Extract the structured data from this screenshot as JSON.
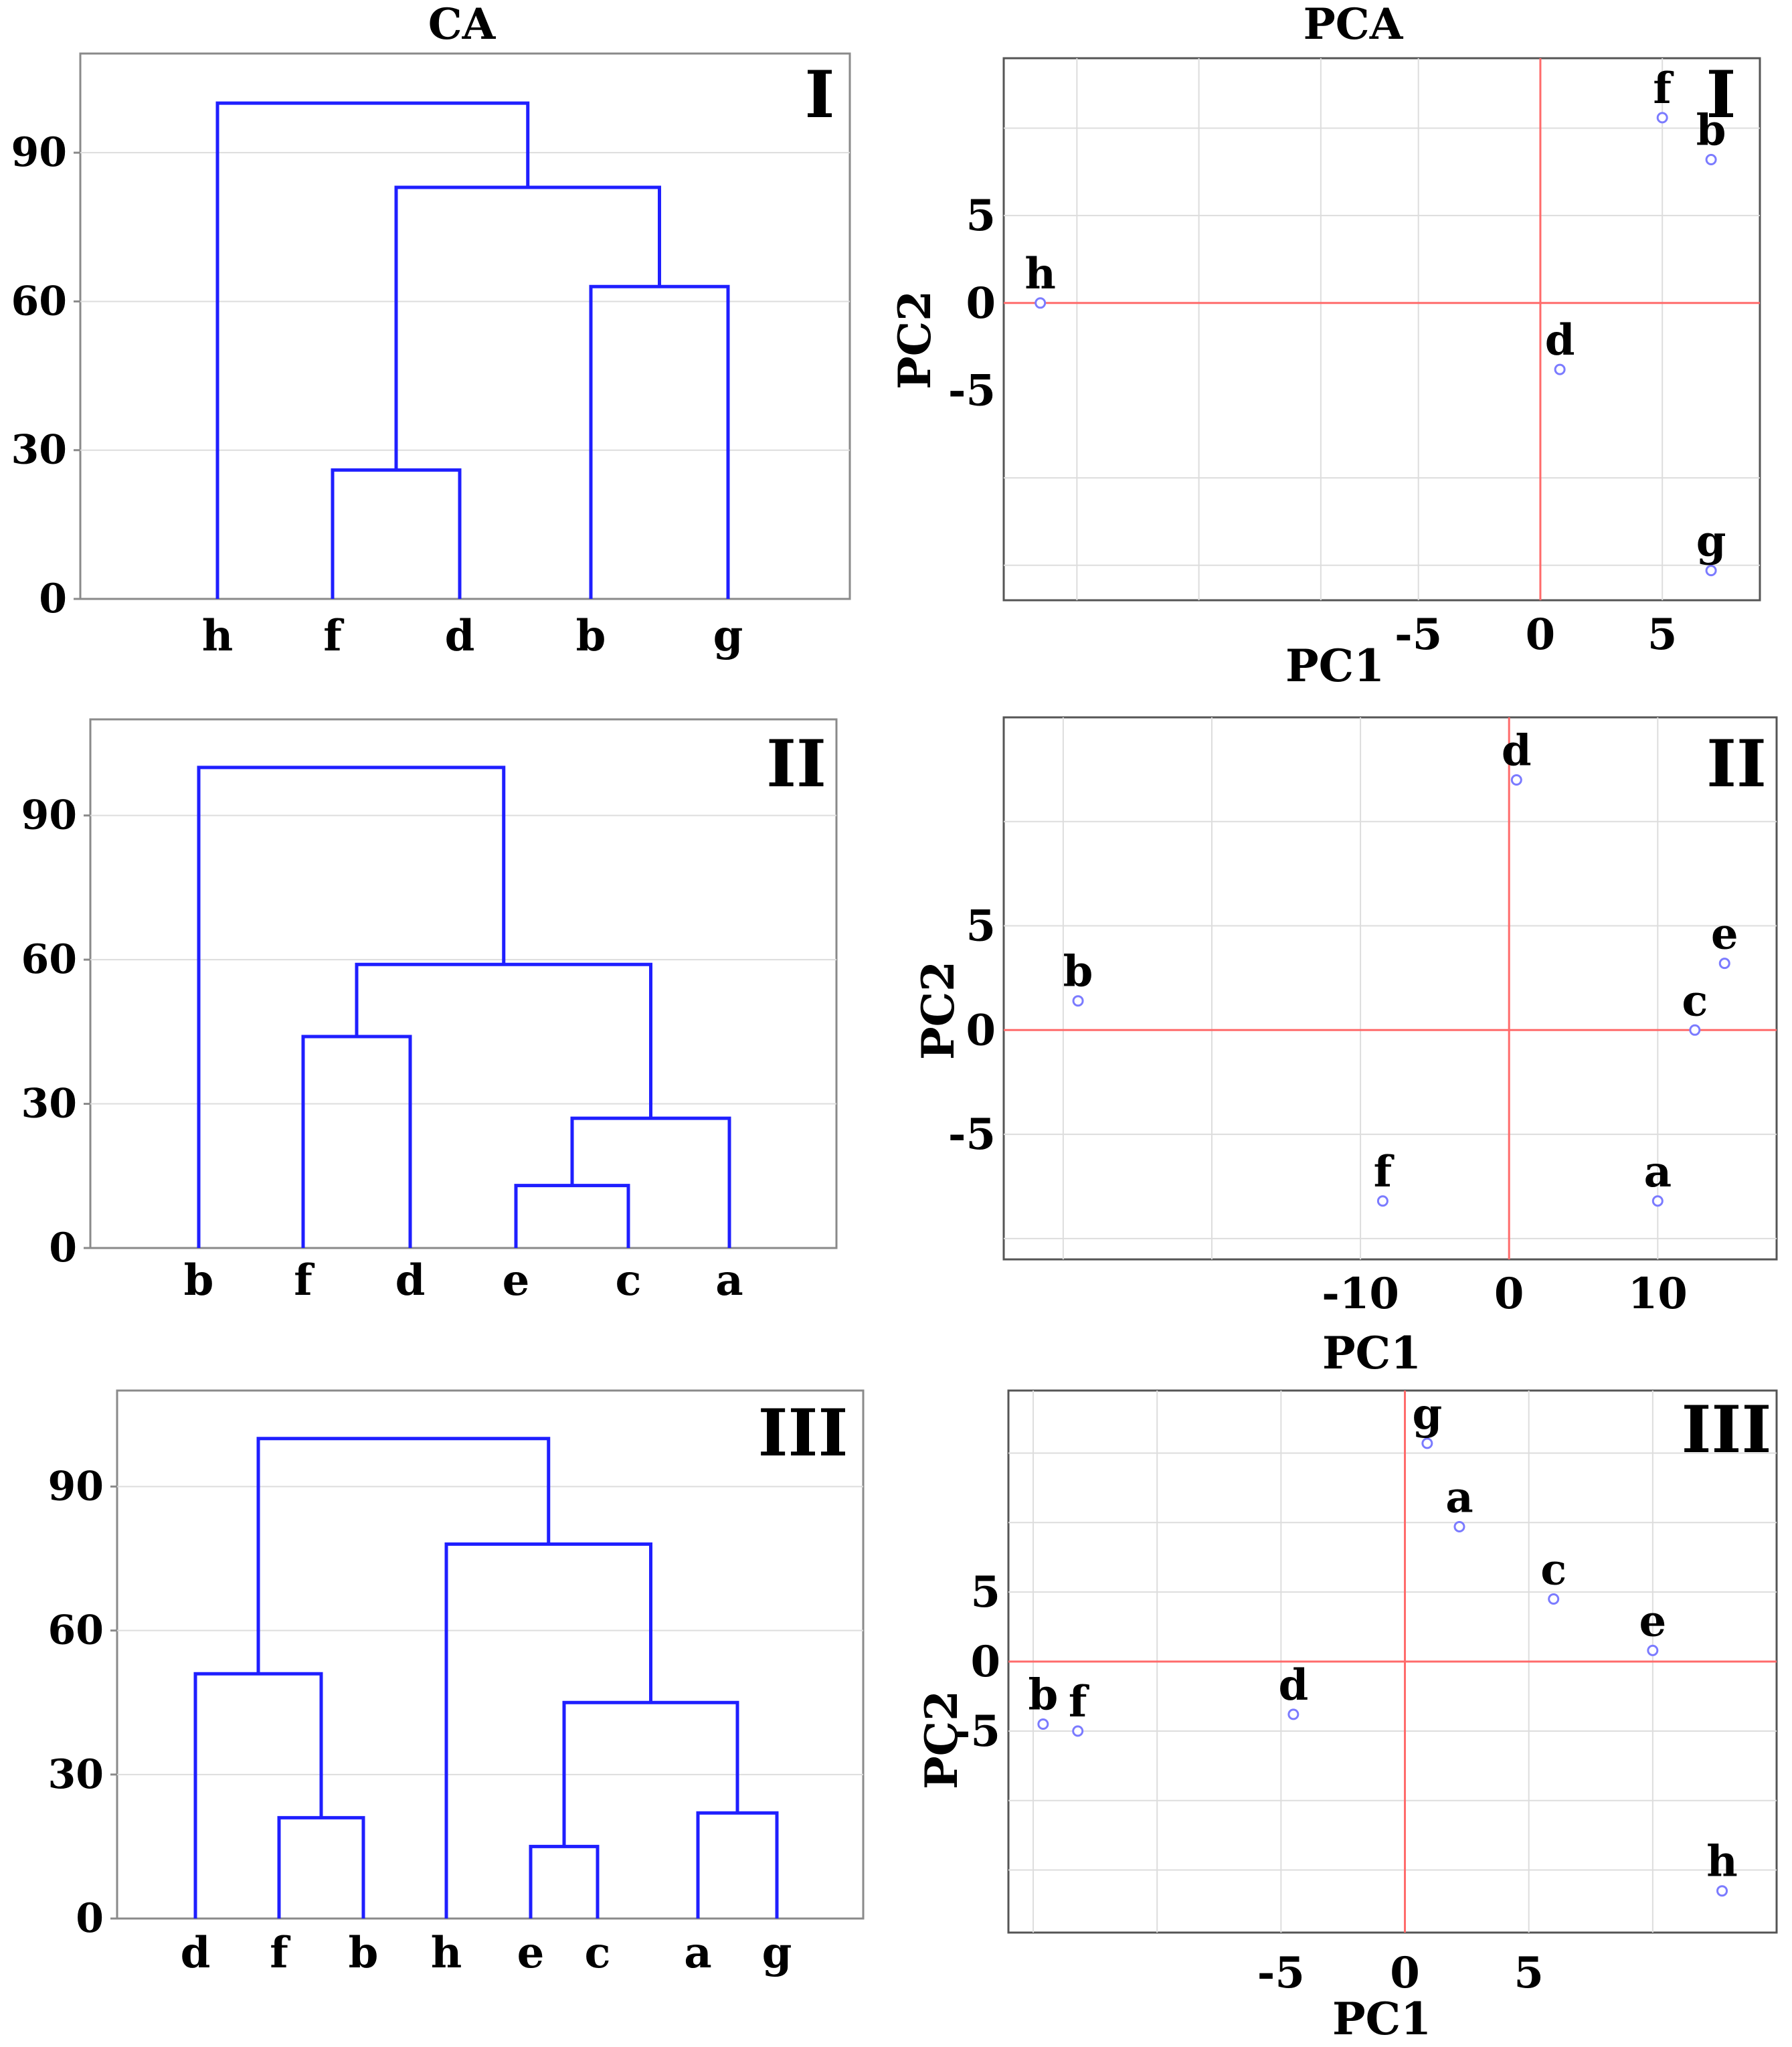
{
  "titles": {
    "ca": "CA",
    "pca": "PCA"
  },
  "colors": {
    "link": "#1f1fff",
    "axis_line": "#ff6b6b",
    "point": "#7b7bff",
    "grid": "#dddddd",
    "frame": "#8a8a8a"
  },
  "chart_data": [
    {
      "id": "ca1",
      "type": "dendrogram",
      "column": "CA",
      "panel_label": "I",
      "yticks": [
        0,
        30,
        60,
        90
      ],
      "ylim": [
        0,
        110
      ],
      "leaves": [
        "h",
        "f",
        "d",
        "b",
        "g"
      ],
      "merges": [
        {
          "left": "f",
          "right": "d",
          "height": 26
        },
        {
          "left": "b",
          "right": "g",
          "height": 63
        },
        {
          "left": 0,
          "right": 1,
          "height": 83
        },
        {
          "left": "h",
          "right": 2,
          "height": 100
        }
      ]
    },
    {
      "id": "ca2",
      "type": "dendrogram",
      "column": "CA",
      "panel_label": "II",
      "yticks": [
        0,
        30,
        60,
        90
      ],
      "ylim": [
        0,
        110
      ],
      "leaves": [
        "b",
        "f",
        "d",
        "e",
        "c",
        "a"
      ],
      "merges": [
        {
          "left": "e",
          "right": "c",
          "height": 13
        },
        {
          "left": 0,
          "right": "a",
          "height": 27
        },
        {
          "left": "f",
          "right": "d",
          "height": 44
        },
        {
          "left": 2,
          "right": 1,
          "height": 59
        },
        {
          "left": "b",
          "right": 3,
          "height": 100
        }
      ]
    },
    {
      "id": "ca3",
      "type": "dendrogram",
      "column": "CA",
      "panel_label": "III",
      "yticks": [
        0,
        30,
        60,
        90
      ],
      "ylim": [
        0,
        110
      ],
      "leaves": [
        "d",
        "f",
        "b",
        "h",
        "e",
        "c",
        "a",
        "g"
      ],
      "merges": [
        {
          "left": "e",
          "right": "c",
          "height": 15
        },
        {
          "left": "f",
          "right": "b",
          "height": 21
        },
        {
          "left": "a",
          "right": "g",
          "height": 22
        },
        {
          "left": 0,
          "right": 2,
          "height": 45
        },
        {
          "left": "d",
          "right": 1,
          "height": 51
        },
        {
          "left": "h",
          "right": 3,
          "height": 78
        },
        {
          "left": 4,
          "right": 5,
          "height": 100
        }
      ]
    },
    {
      "id": "pca1",
      "type": "scatter",
      "column": "PCA",
      "panel_label": "I",
      "xlabel": "PC1",
      "ylabel": "PC2",
      "xlim": [
        -22,
        9
      ],
      "ylim": [
        -17,
        14
      ],
      "xticks": [
        -5,
        0,
        5
      ],
      "yticks": [
        5,
        0,
        -5
      ],
      "xgrid": [
        -19,
        -14,
        -9,
        -5,
        0,
        5
      ],
      "ygrid": [
        -15,
        -10,
        5,
        10
      ],
      "points": [
        {
          "label": "f",
          "x": 5,
          "y": 10.6
        },
        {
          "label": "b",
          "x": 7,
          "y": 8.2
        },
        {
          "label": "h",
          "x": -20.5,
          "y": 0
        },
        {
          "label": "d",
          "x": 0.8,
          "y": -3.8
        },
        {
          "label": "g",
          "x": 7,
          "y": -15.3
        }
      ]
    },
    {
      "id": "pca2",
      "type": "scatter",
      "column": "PCA",
      "panel_label": "II",
      "xlabel": "PC1",
      "ylabel": "PC2",
      "xlim": [
        -34,
        18
      ],
      "ylim": [
        -11,
        15
      ],
      "xticks": [
        -10,
        0,
        10
      ],
      "yticks": [
        5,
        0,
        -5
      ],
      "xgrid": [
        -30,
        -20,
        -10,
        0,
        10
      ],
      "ygrid": [
        -10,
        -5,
        5,
        10
      ],
      "points": [
        {
          "label": "d",
          "x": 0.5,
          "y": 12
        },
        {
          "label": "e",
          "x": 14.5,
          "y": 3.2
        },
        {
          "label": "b",
          "x": -29,
          "y": 1.4
        },
        {
          "label": "c",
          "x": 12.5,
          "y": 0
        },
        {
          "label": "f",
          "x": -8.5,
          "y": -8.2
        },
        {
          "label": "a",
          "x": 10,
          "y": -8.2
        }
      ]
    },
    {
      "id": "pca3",
      "type": "scatter",
      "column": "PCA",
      "panel_label": "III",
      "xlabel": "PC1",
      "ylabel": "PC2",
      "xlim": [
        -16,
        15
      ],
      "ylim": [
        -19.5,
        19.5
      ],
      "xticks": [
        -5,
        0,
        5
      ],
      "yticks": [
        5,
        0,
        -5
      ],
      "xgrid": [
        -15,
        -10,
        -5,
        0,
        5,
        10
      ],
      "ygrid": [
        -15,
        -10,
        -5,
        5,
        10,
        15
      ],
      "points": [
        {
          "label": "g",
          "x": 0.9,
          "y": 15.7
        },
        {
          "label": "a",
          "x": 2.2,
          "y": 9.7
        },
        {
          "label": "c",
          "x": 6,
          "y": 4.5
        },
        {
          "label": "e",
          "x": 10,
          "y": 0.8
        },
        {
          "label": "b",
          "x": -14.6,
          "y": -4.5
        },
        {
          "label": "f",
          "x": -13.2,
          "y": -5
        },
        {
          "label": "d",
          "x": -4.5,
          "y": -3.8
        },
        {
          "label": "h",
          "x": 12.8,
          "y": -16.5
        }
      ]
    }
  ]
}
